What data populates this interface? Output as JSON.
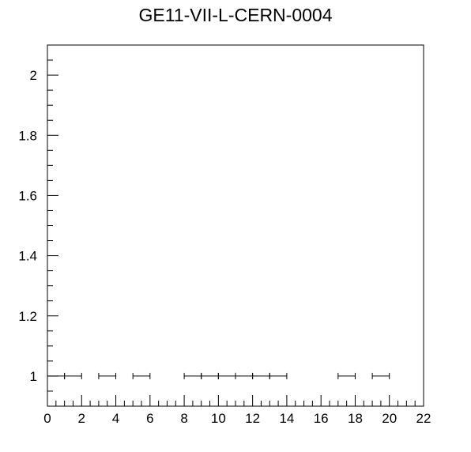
{
  "chart_data": {
    "type": "scatter",
    "title": "GE11-VII-L-CERN-0004",
    "xlabel": "",
    "ylabel": "",
    "xlim": [
      0,
      22
    ],
    "ylim": [
      0.9,
      2.1
    ],
    "grid": false,
    "xticks": [
      0,
      2,
      4,
      6,
      8,
      10,
      12,
      14,
      16,
      18,
      20,
      22
    ],
    "yticks": [
      1,
      1.2,
      1.4,
      1.6,
      1.8,
      2
    ],
    "xtick_labels": [
      "0",
      "2",
      "4",
      "6",
      "8",
      "10",
      "12",
      "14",
      "16",
      "18",
      "20",
      "22"
    ],
    "ytick_labels": [
      "1",
      "1.2",
      "1.4",
      "1.6",
      "1.8",
      "2"
    ],
    "series": [
      {
        "points": [
          {
            "x": 0.5,
            "y": 1,
            "xerr": 0.5
          },
          {
            "x": 1.5,
            "y": 1,
            "xerr": 0.5
          },
          {
            "x": 3.5,
            "y": 1,
            "xerr": 0.5
          },
          {
            "x": 5.5,
            "y": 1,
            "xerr": 0.5
          },
          {
            "x": 8.5,
            "y": 1,
            "xerr": 0.5
          },
          {
            "x": 9.5,
            "y": 1,
            "xerr": 0.5
          },
          {
            "x": 10.5,
            "y": 1,
            "xerr": 0.5
          },
          {
            "x": 11.5,
            "y": 1,
            "xerr": 0.5
          },
          {
            "x": 12.5,
            "y": 1,
            "xerr": 0.5
          },
          {
            "x": 13.5,
            "y": 1,
            "xerr": 0.5
          },
          {
            "x": 17.5,
            "y": 1,
            "xerr": 0.5
          },
          {
            "x": 19.5,
            "y": 1,
            "xerr": 0.5
          }
        ]
      }
    ]
  }
}
